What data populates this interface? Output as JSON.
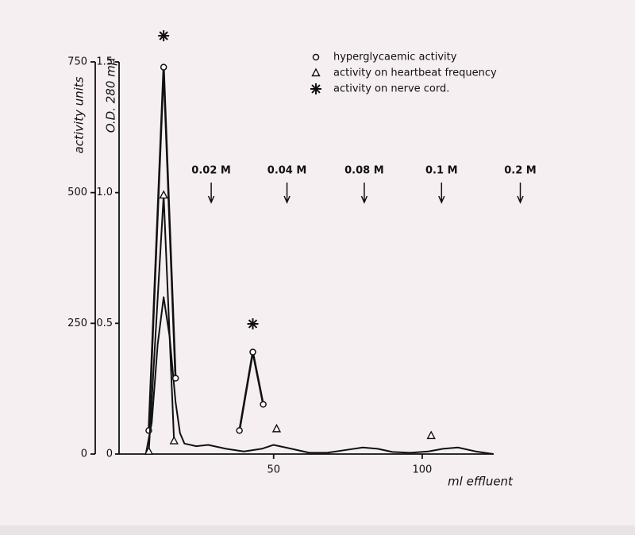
{
  "chart_data": {
    "type": "line",
    "xlabel": "ml effluent",
    "ylabel": "activity units",
    "y2label": "O.D. 280 mμ",
    "xlim": [
      -2,
      135
    ],
    "xticks": [
      50,
      100
    ],
    "ylim": [
      0,
      750
    ],
    "yticks": [
      0,
      250,
      500,
      750
    ],
    "y2lim": [
      0,
      1.5
    ],
    "y2ticks": [
      0,
      0.5,
      {
        "value": 1,
        "label": "1.0"
      },
      1.5
    ],
    "series": [
      {
        "color": "#111111",
        "marker": "none",
        "axis": "y2",
        "x": [
          7,
          9,
          11,
          13,
          15,
          17,
          18.5,
          20,
          24,
          28,
          34,
          40,
          46,
          50,
          56,
          62,
          68,
          74,
          80,
          85,
          90,
          96,
          102,
          107,
          112,
          118,
          124
        ],
        "values": [
          0,
          0.12,
          0.42,
          0.6,
          0.45,
          0.2,
          0.08,
          0.04,
          0.03,
          0.035,
          0.02,
          0.01,
          0.02,
          0.035,
          0.02,
          0.005,
          0.005,
          0.015,
          0.025,
          0.02,
          0.008,
          0.005,
          0.01,
          0.02,
          0.025,
          0.01,
          0
        ]
      },
      {
        "name": "hyperglycaemic activity",
        "color": "#111111",
        "marker": "circle",
        "x": [
          8,
          13,
          17,
          null,
          38.5,
          43,
          46.5
        ],
        "values": [
          45,
          740,
          145,
          null,
          45,
          195,
          95
        ]
      },
      {
        "name": "activity on heartbeat frequency",
        "color": "#111111",
        "marker": "triangle",
        "x": [
          8,
          13,
          16.5,
          null,
          51,
          null,
          103
        ],
        "values": [
          5,
          495,
          25,
          null,
          48,
          null,
          35
        ]
      },
      {
        "name": "activity on nerve cord.",
        "color": "#111111",
        "marker": "asterisk",
        "x": [
          13,
          null,
          43
        ],
        "values": [
          800,
          null,
          249
        ]
      }
    ],
    "gradient_steps": [
      {
        "label": "0.02 M",
        "x": 29
      },
      {
        "label": "0.04 M",
        "x": 54.5
      },
      {
        "label": "0.08 M",
        "x": 80.5
      },
      {
        "label": "0.1 M",
        "x": 106.5
      },
      {
        "label": "0.2 M",
        "x": 133
      }
    ]
  }
}
